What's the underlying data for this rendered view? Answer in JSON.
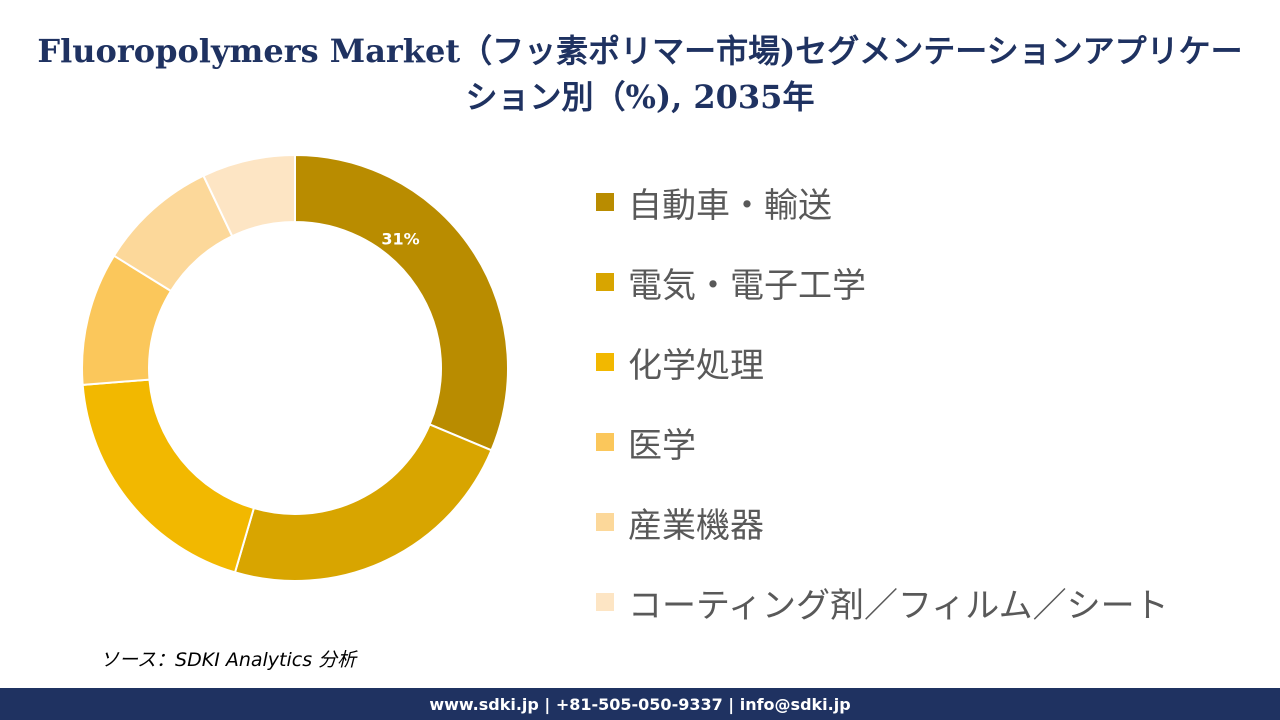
{
  "title": "Fluoropolymers Market（フッ素ポリマー市場)セグメンテーションアプリケーション別（%), 2035年",
  "source": "ソース：SDKI Analytics 分析",
  "footer": "www.sdki.jp | +81-505-050-9337 | info@sdki.jp",
  "chart_data": {
    "type": "pie",
    "style": "donut",
    "title": "Fluoropolymers Market（フッ素ポリマー市場)セグメンテーションアプリケーション別（%), 2035年",
    "legend_position": "right",
    "categories": [
      "自動車・輸送",
      "電気・電子工学",
      "化学処理",
      "医学",
      "産業機器",
      "コーティング剤／フィルム／シート"
    ],
    "values": [
      31,
      23,
      19,
      10,
      9,
      7
    ],
    "colors": [
      "#b98c00",
      "#d8a500",
      "#f2b800",
      "#fbc75b",
      "#fcd89a",
      "#fde5c4"
    ],
    "data_labels": [
      "31%",
      "",
      "",
      "",
      "",
      ""
    ],
    "data_label_color": "#ffffff"
  }
}
